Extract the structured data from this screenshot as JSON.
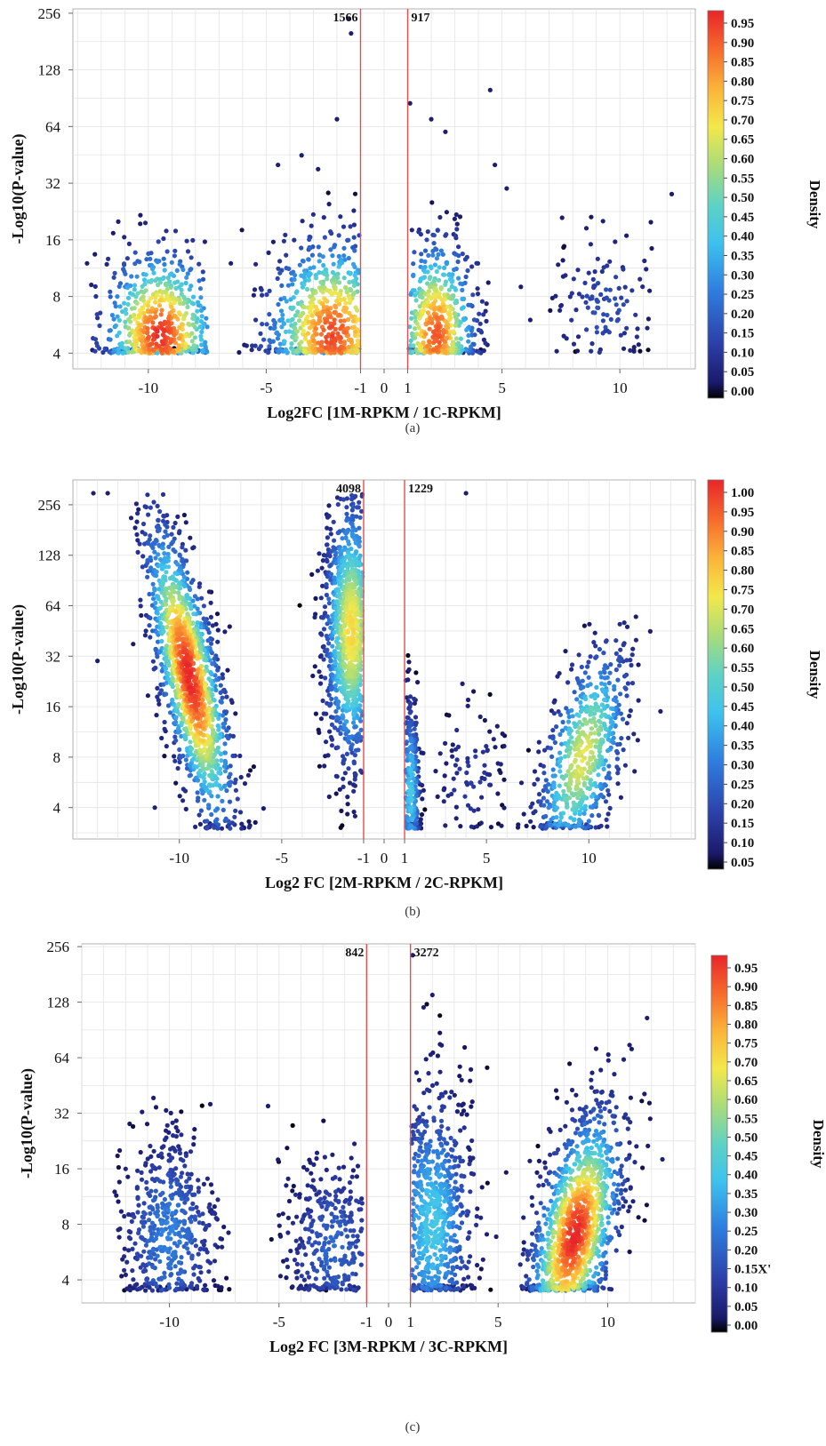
{
  "chart_data": [
    {
      "type": "scatter",
      "panel_label": "(a)",
      "xlabel": "Log2FC [1M-RPKM / 1C-RPKM]",
      "ylabel": "-Log10(P-value)",
      "colorbar_label": "Density",
      "y_scale": "log2",
      "xlim": [
        -13.2,
        13.2
      ],
      "ylim": [
        3.3,
        270
      ],
      "x_ticks": [
        {
          "label": "-10",
          "value": -10
        },
        {
          "label": "-5",
          "value": -5
        },
        {
          "label": "-1",
          "value": -1
        },
        {
          "label": "0",
          "value": 0
        },
        {
          "label": "1",
          "value": 1
        },
        {
          "label": "5",
          "value": 5
        },
        {
          "label": "10",
          "value": 10
        }
      ],
      "y_ticks": [
        {
          "label": "4",
          "value": 4
        },
        {
          "label": "8",
          "value": 8
        },
        {
          "label": "16",
          "value": 16
        },
        {
          "label": "32",
          "value": 32
        },
        {
          "label": "64",
          "value": 64
        },
        {
          "label": "128",
          "value": 128
        },
        {
          "label": "256",
          "value": 256
        }
      ],
      "threshold_lines": [
        -1,
        1
      ],
      "threshold_color": "#e05050",
      "counts": [
        {
          "label": "1566",
          "x": -1,
          "side": "left"
        },
        {
          "label": "917",
          "x": 1,
          "side": "right"
        }
      ],
      "colorbar_ticks": [
        "0.00",
        "0.05",
        "0.10",
        "0.15",
        "0.20",
        "0.25",
        "0.30",
        "0.35",
        "0.40",
        "0.45",
        "0.50",
        "0.55",
        "0.60",
        "0.65",
        "0.70",
        "0.75",
        "0.80",
        "0.85",
        "0.90",
        "0.95"
      ],
      "colorbar_max": 1.0,
      "clusters": [
        {
          "cx": -9.5,
          "cy": 5,
          "sx": 1.3,
          "sy": 0.8,
          "n": 620,
          "density": 0.95,
          "xmin": -12.5,
          "xmax": -7.5,
          "ymin": 4,
          "ymax": 22
        },
        {
          "cx": -2.2,
          "cy": 5,
          "sx": 1.5,
          "sy": 0.9,
          "n": 650,
          "density": 0.92,
          "xmin": -6.3,
          "xmax": -1.05,
          "ymin": 4,
          "ymax": 30
        },
        {
          "cx": 2.2,
          "cy": 5,
          "sx": 0.9,
          "sy": 0.9,
          "n": 520,
          "density": 0.9,
          "xmin": 1.05,
          "xmax": 4.6,
          "ymin": 4,
          "ymax": 30
        },
        {
          "cx": 9.3,
          "cy": 7,
          "sx": 1.2,
          "sy": 0.7,
          "n": 120,
          "density": 0.15,
          "xmin": 7,
          "xmax": 11.5,
          "ymin": 4,
          "ymax": 22
        }
      ],
      "points": [
        {
          "x": -1.5,
          "y": 240
        },
        {
          "x": -1.4,
          "y": 200
        },
        {
          "x": -2.0,
          "y": 70
        },
        {
          "x": -4.5,
          "y": 40
        },
        {
          "x": -3.5,
          "y": 45
        },
        {
          "x": -2.8,
          "y": 38
        },
        {
          "x": 1.1,
          "y": 85
        },
        {
          "x": 2.0,
          "y": 70
        },
        {
          "x": 2.6,
          "y": 60
        },
        {
          "x": 4.5,
          "y": 100
        },
        {
          "x": 4.7,
          "y": 40
        },
        {
          "x": 5.2,
          "y": 30
        },
        {
          "x": 12.2,
          "y": 28
        },
        {
          "x": -12.6,
          "y": 12
        },
        {
          "x": -6.5,
          "y": 12
        },
        {
          "x": 6.2,
          "y": 6
        },
        {
          "x": 5.8,
          "y": 9
        }
      ]
    },
    {
      "type": "scatter",
      "panel_label": "(b)",
      "xlabel": "Log2 FC [2M-RPKM / 2C-RPKM]",
      "ylabel": "-Log10(P-value)",
      "colorbar_label": "Density",
      "y_scale": "log2",
      "xlim": [
        -15.2,
        15.2
      ],
      "ylim": [
        2.6,
        360
      ],
      "x_ticks": [
        {
          "label": "-10",
          "value": -10
        },
        {
          "label": "-5",
          "value": -5
        },
        {
          "label": "-1",
          "value": -1
        },
        {
          "label": "0",
          "value": 0
        },
        {
          "label": "1",
          "value": 1
        },
        {
          "label": "5",
          "value": 5
        },
        {
          "label": "10",
          "value": 10
        }
      ],
      "y_ticks": [
        {
          "label": "4",
          "value": 4
        },
        {
          "label": "8",
          "value": 8
        },
        {
          "label": "16",
          "value": 16
        },
        {
          "label": "32",
          "value": 32
        },
        {
          "label": "64",
          "value": 64
        },
        {
          "label": "128",
          "value": 128
        },
        {
          "label": "256",
          "value": 256
        }
      ],
      "threshold_lines": [
        -1,
        1
      ],
      "threshold_color": "#e05050",
      "counts": [
        {
          "label": "4098",
          "x": -1,
          "side": "left"
        },
        {
          "label": "1229",
          "x": 1,
          "side": "right"
        }
      ],
      "colorbar_ticks": [
        "0.05",
        "0.10",
        "0.15",
        "0.20",
        "0.25",
        "0.30",
        "0.35",
        "0.40",
        "0.45",
        "0.50",
        "0.55",
        "0.60",
        "0.65",
        "0.70",
        "0.75",
        "0.80",
        "0.85",
        "0.90",
        "0.95",
        "1.00"
      ],
      "colorbar_max": 1.0,
      "clusters": [
        {
          "cx": -9.5,
          "cy": 24,
          "sx": 1.1,
          "sy": 1.1,
          "n": 1400,
          "density": 0.97,
          "xmin": -12.5,
          "xmax": -5.8,
          "ymin": 3,
          "ymax": 300,
          "slope": -1.05
        },
        {
          "cx": -1.6,
          "cy": 45,
          "sx": 0.7,
          "sy": 1.4,
          "n": 1000,
          "density": 0.7,
          "xmin": -4.5,
          "xmax": -1.05,
          "ymin": 3,
          "ymax": 300
        },
        {
          "cx": 1.3,
          "cy": 5,
          "sx": 0.25,
          "sy": 1.0,
          "n": 280,
          "density": 0.4,
          "xmin": 1.05,
          "xmax": 2.0,
          "ymin": 3,
          "ymax": 60
        },
        {
          "cx": 4.2,
          "cy": 6,
          "sx": 0.9,
          "sy": 0.9,
          "n": 90,
          "density": 0.1,
          "xmin": 2.5,
          "xmax": 6.5,
          "ymin": 3,
          "ymax": 25
        },
        {
          "cx": 9.7,
          "cy": 8,
          "sx": 1.2,
          "sy": 1.0,
          "n": 650,
          "density": 0.65,
          "xmin": 6.5,
          "xmax": 12.5,
          "ymin": 3,
          "ymax": 55,
          "slope": 0.55
        }
      ],
      "points": [
        {
          "x": -14.2,
          "y": 300
        },
        {
          "x": -13.5,
          "y": 300
        },
        {
          "x": -12.0,
          "y": 240
        },
        {
          "x": -14.0,
          "y": 30
        },
        {
          "x": -11.2,
          "y": 4
        },
        {
          "x": 4.0,
          "y": 300
        },
        {
          "x": 13.0,
          "y": 45
        },
        {
          "x": 12.3,
          "y": 55
        },
        {
          "x": 13.5,
          "y": 15
        }
      ]
    },
    {
      "type": "scatter",
      "panel_label": "(c)",
      "xlabel": "Log2 FC [3M-RPKM / 3C-RPKM]",
      "ylabel": "-Log10(P-value)",
      "colorbar_label": "Density",
      "y_scale": "log2",
      "xlim": [
        -14,
        14
      ],
      "ylim": [
        3.0,
        265
      ],
      "x_ticks": [
        {
          "label": "-10",
          "value": -10
        },
        {
          "label": "-5",
          "value": -5
        },
        {
          "label": "-1",
          "value": -1
        },
        {
          "label": "0",
          "value": 0
        },
        {
          "label": "1",
          "value": 1
        },
        {
          "label": "5",
          "value": 5
        },
        {
          "label": "10",
          "value": 10
        }
      ],
      "y_ticks": [
        {
          "label": "4",
          "value": 4
        },
        {
          "label": "8",
          "value": 8
        },
        {
          "label": "16",
          "value": 16
        },
        {
          "label": "32",
          "value": 32
        },
        {
          "label": "64",
          "value": 64
        },
        {
          "label": "128",
          "value": 128
        },
        {
          "label": "256",
          "value": 256
        }
      ],
      "threshold_lines": [
        -1,
        1
      ],
      "threshold_color": "#e05050",
      "counts": [
        {
          "label": "842",
          "x": -1,
          "side": "left"
        },
        {
          "label": "3272",
          "x": 1,
          "side": "right"
        }
      ],
      "colorbar_ticks": [
        "0.00",
        "0.05",
        "0.10",
        "0.15X'",
        "0.20",
        "0.25",
        "0.30",
        "0.35",
        "0.40",
        "0.45",
        "0.50",
        "0.55",
        "0.60",
        "0.65",
        "0.70",
        "0.75",
        "0.80",
        "0.85",
        "0.90",
        "0.95"
      ],
      "colorbar_max": 1.0,
      "clusters": [
        {
          "cx": -10.0,
          "cy": 7,
          "sx": 1.2,
          "sy": 1.0,
          "n": 520,
          "density": 0.25,
          "xmin": -12.5,
          "xmax": -7.2,
          "ymin": 3.5,
          "ymax": 40
        },
        {
          "cx": -2.5,
          "cy": 6,
          "sx": 1.2,
          "sy": 0.9,
          "n": 330,
          "density": 0.2,
          "xmin": -5.5,
          "xmax": -1.2,
          "ymin": 3.5,
          "ymax": 30
        },
        {
          "cx": 2.0,
          "cy": 8,
          "sx": 1.0,
          "sy": 1.3,
          "n": 700,
          "density": 0.4,
          "xmin": 1.05,
          "xmax": 5.5,
          "ymin": 3.5,
          "ymax": 130
        },
        {
          "cx": 8.5,
          "cy": 7,
          "sx": 1.1,
          "sy": 1.0,
          "n": 1300,
          "density": 0.97,
          "xmin": 6.0,
          "xmax": 12.0,
          "ymin": 3.5,
          "ymax": 80,
          "slope": 0.55
        }
      ],
      "points": [
        {
          "x": 1.1,
          "y": 230
        },
        {
          "x": 2.0,
          "y": 140
        },
        {
          "x": 1.6,
          "y": 120
        },
        {
          "x": 11.8,
          "y": 105
        },
        {
          "x": 11.0,
          "y": 75
        },
        {
          "x": -5.5,
          "y": 35
        },
        {
          "x": 12.5,
          "y": 18
        },
        {
          "x": -12.5,
          "y": 12
        }
      ]
    }
  ]
}
